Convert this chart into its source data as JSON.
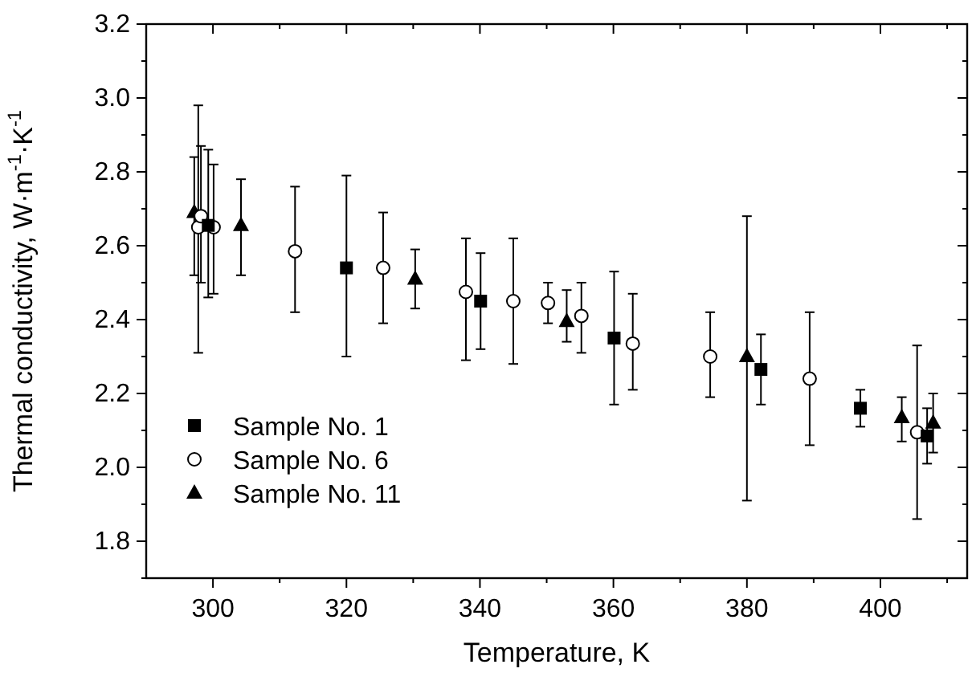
{
  "chart_data": {
    "type": "scatter",
    "xlabel": "Temperature, K",
    "ylabel": "Thermal conductivity, W·m$^{-1}$·K$^{-1}$",
    "xlim": [
      290,
      413
    ],
    "xticks": [
      300,
      {
        "value": 310,
        "label": null
      },
      320,
      {
        "value": 330,
        "label": null
      },
      340,
      {
        "value": 350,
        "label": null
      },
      360,
      {
        "value": 370,
        "label": null
      },
      380,
      {
        "value": 390,
        "label": null
      },
      400,
      {
        "value": 410,
        "label": null
      }
    ],
    "ylim": [
      1.7,
      3.2
    ],
    "yticks": [
      {
        "value": 1.7,
        "label": null
      },
      1.8,
      {
        "value": 1.9,
        "label": null
      },
      {
        "value": 2,
        "label": "2.0"
      },
      {
        "value": 2.1,
        "label": null
      },
      2.2,
      {
        "value": 2.3,
        "label": null
      },
      2.4,
      {
        "value": 2.5,
        "label": null
      },
      2.6,
      {
        "value": 2.7,
        "label": null
      },
      2.8,
      {
        "value": 2.9,
        "label": null
      },
      {
        "value": 3,
        "label": "3.0"
      },
      {
        "value": 3.1,
        "label": null
      },
      3.2
    ],
    "legend": "bottom left",
    "grid": false,
    "series": [
      {
        "name": "Sample No. 1",
        "color": "#000000",
        "marker": "square",
        "x": [
          299.3,
          320,
          340.1,
          360.1,
          382.1,
          397,
          407
        ],
        "values": [
          2.655,
          2.54,
          2.45,
          2.35,
          2.265,
          2.16,
          2.085
        ],
        "errors": [
          [
            2.46,
            2.86
          ],
          [
            2.3,
            2.79
          ],
          [
            2.32,
            2.58
          ],
          [
            2.17,
            2.53
          ],
          [
            2.17,
            2.36
          ],
          [
            2.11,
            2.21
          ],
          [
            2.01,
            2.16
          ]
        ]
      },
      {
        "name": "Sample No. 6",
        "color": "#000000",
        "marker": "circle",
        "x": [
          297.8,
          298.2,
          300.1,
          312.3,
          325.5,
          337.9,
          345,
          350.2,
          355.2,
          362.9,
          374.5,
          389.4,
          405.5
        ],
        "values": [
          2.65,
          2.68,
          2.65,
          2.585,
          2.54,
          2.475,
          2.45,
          2.445,
          2.41,
          2.335,
          2.3,
          2.24,
          2.095
        ],
        "errors": [
          [
            2.31,
            2.98
          ],
          [
            2.5,
            2.87
          ],
          [
            2.47,
            2.82
          ],
          [
            2.42,
            2.76
          ],
          [
            2.39,
            2.69
          ],
          [
            2.29,
            2.62
          ],
          [
            2.28,
            2.62
          ],
          [
            2.39,
            2.5
          ],
          [
            2.31,
            2.5
          ],
          [
            2.21,
            2.47
          ],
          [
            2.19,
            2.42
          ],
          [
            2.06,
            2.42
          ],
          [
            1.86,
            2.33
          ]
        ]
      },
      {
        "name": "Sample No. 11",
        "color": "#000000",
        "marker": "triangle",
        "x": [
          297.2,
          304.2,
          330.3,
          353,
          380,
          403.2,
          407.9
        ],
        "values": [
          2.69,
          2.655,
          2.51,
          2.395,
          2.3,
          2.135,
          2.12
        ],
        "errors": [
          [
            2.52,
            2.84
          ],
          [
            2.52,
            2.78
          ],
          [
            2.43,
            2.59
          ],
          [
            2.34,
            2.48
          ],
          [
            1.91,
            2.68
          ],
          [
            2.07,
            2.19
          ],
          [
            2.04,
            2.2
          ]
        ]
      }
    ]
  }
}
